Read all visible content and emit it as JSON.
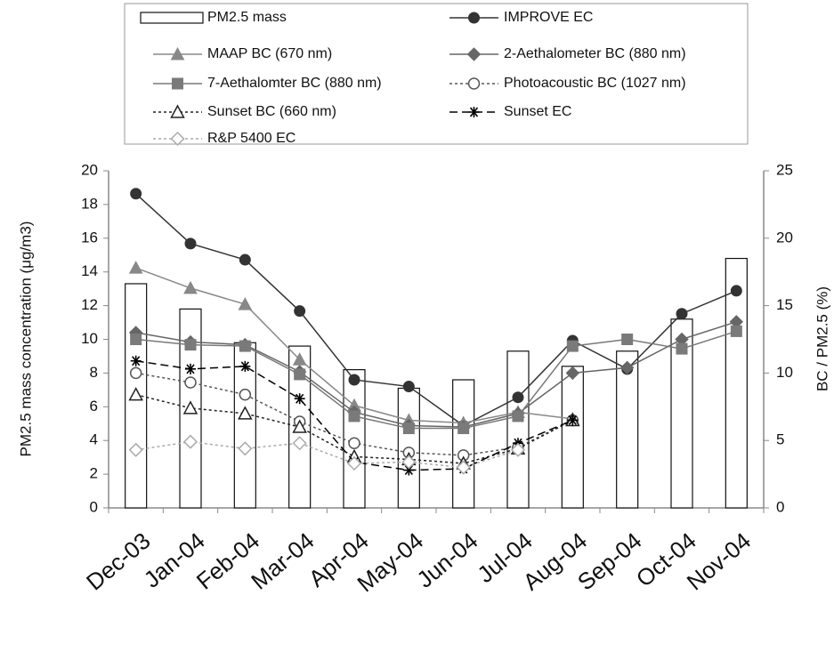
{
  "chart_data": {
    "type": "bar-line",
    "categories": [
      "Dec-03",
      "Jan-04",
      "Feb-04",
      "Mar-04",
      "Apr-04",
      "May-04",
      "Jun-04",
      "Jul-04",
      "Aug-04",
      "Sep-04",
      "Oct-04",
      "Nov-04"
    ],
    "y_label": "PM2.5 mass concentration (μg/m3)",
    "y2_label": "BC / PM2.5 (%)",
    "ylim": [
      0,
      20
    ],
    "yticks": [
      0,
      2,
      4,
      6,
      8,
      10,
      12,
      14,
      16,
      18,
      20
    ],
    "y2lim": [
      0,
      25
    ],
    "y2ticks": [
      0,
      5,
      10,
      15,
      20,
      25
    ],
    "series": [
      {
        "name": "PM2.5 mass",
        "type": "bar",
        "color": "#ffffff",
        "values": [
          13.3,
          11.8,
          9.8,
          9.6,
          8.2,
          7.1,
          7.6,
          9.3,
          8.4,
          9.3,
          11.2,
          14.8
        ]
      },
      {
        "name": "IMPROVE EC",
        "type": "line",
        "axis": "y2",
        "color": "#333333",
        "marker": "circle",
        "dash": "solid",
        "values": [
          23.3,
          19.6,
          18.4,
          14.6,
          9.5,
          9.0,
          6.1,
          8.2,
          12.4,
          10.3,
          14.4,
          16.1
        ]
      },
      {
        "name": "MAAP BC (670 nm)",
        "type": "line",
        "axis": "y2",
        "color": "#888888",
        "marker": "triangle",
        "dash": "solid",
        "values": [
          17.8,
          16.3,
          15.1,
          11.0,
          7.6,
          6.5,
          6.3,
          7.1,
          6.6,
          null,
          null,
          null
        ]
      },
      {
        "name": "2-Aethalometer BC (880 nm)",
        "type": "line",
        "axis": "y2",
        "color": "#666666",
        "marker": "diamond",
        "dash": "solid",
        "values": [
          13.0,
          12.3,
          12.1,
          10.1,
          7.1,
          6.1,
          6.0,
          7.0,
          10.0,
          10.4,
          12.5,
          13.8
        ]
      },
      {
        "name": "7-Aethalomter BC (880 nm)",
        "type": "line",
        "axis": "y2",
        "color": "#7a7a7a",
        "marker": "square",
        "dash": "solid",
        "values": [
          12.5,
          12.1,
          12.0,
          9.9,
          6.8,
          5.9,
          5.9,
          6.8,
          12.0,
          12.5,
          11.8,
          13.1
        ]
      },
      {
        "name": "Photoacoustic BC (1027 nm)",
        "type": "line",
        "axis": "y2",
        "color": "#555555",
        "marker": "open-circle",
        "dash": "dotted",
        "values": [
          10.0,
          9.3,
          8.4,
          6.4,
          4.8,
          4.1,
          3.9,
          4.5,
          6.5,
          null,
          null,
          null
        ]
      },
      {
        "name": "Sunset BC (660 nm)",
        "type": "line",
        "axis": "y2",
        "color": "#222222",
        "marker": "open-triangle",
        "dash": "dotted",
        "values": [
          8.4,
          7.4,
          7.0,
          6.0,
          3.8,
          3.6,
          3.3,
          4.4,
          6.5,
          null,
          null,
          null
        ]
      },
      {
        "name": "Sunset EC",
        "type": "line",
        "axis": "y2",
        "color": "#000000",
        "marker": "asterisk",
        "dash": "dashed",
        "values": [
          10.9,
          10.3,
          10.5,
          8.1,
          3.4,
          2.8,
          2.9,
          4.8,
          6.5,
          null,
          null,
          null
        ]
      },
      {
        "name": "R&P 5400 EC",
        "type": "line",
        "axis": "y2",
        "color": "#aaaaaa",
        "marker": "open-diamond",
        "dash": "dotted",
        "values": [
          4.3,
          4.9,
          4.4,
          4.8,
          3.3,
          3.4,
          3.0,
          4.3,
          null,
          null,
          null,
          null
        ]
      }
    ]
  }
}
